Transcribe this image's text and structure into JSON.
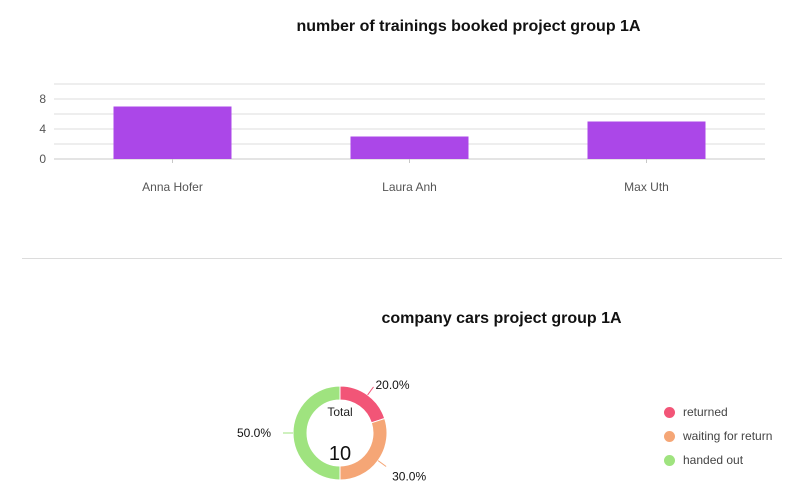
{
  "chart_data": [
    {
      "type": "bar",
      "title": "number of trainings booked project group 1A",
      "categories": [
        "Anna Hofer",
        "Laura Anh",
        "Max Uth"
      ],
      "values": [
        7,
        3,
        5
      ],
      "ylim": [
        0,
        10
      ],
      "yticks": [
        0,
        4,
        8
      ],
      "bar_color": "#ab47e8",
      "grid": true
    },
    {
      "type": "pie",
      "title": "company cars project group 1A",
      "donut": true,
      "center_label": "Total",
      "center_value": "10",
      "slices": [
        {
          "label": "returned",
          "value": 2,
          "percent_label": "20.0%",
          "color": "#f25577"
        },
        {
          "label": "waiting for return",
          "value": 3,
          "percent_label": "30.0%",
          "color": "#f5a676"
        },
        {
          "label": "handed out",
          "value": 5,
          "percent_label": "50.0%",
          "color": "#9fe37f"
        }
      ],
      "legend_position": "right"
    }
  ]
}
